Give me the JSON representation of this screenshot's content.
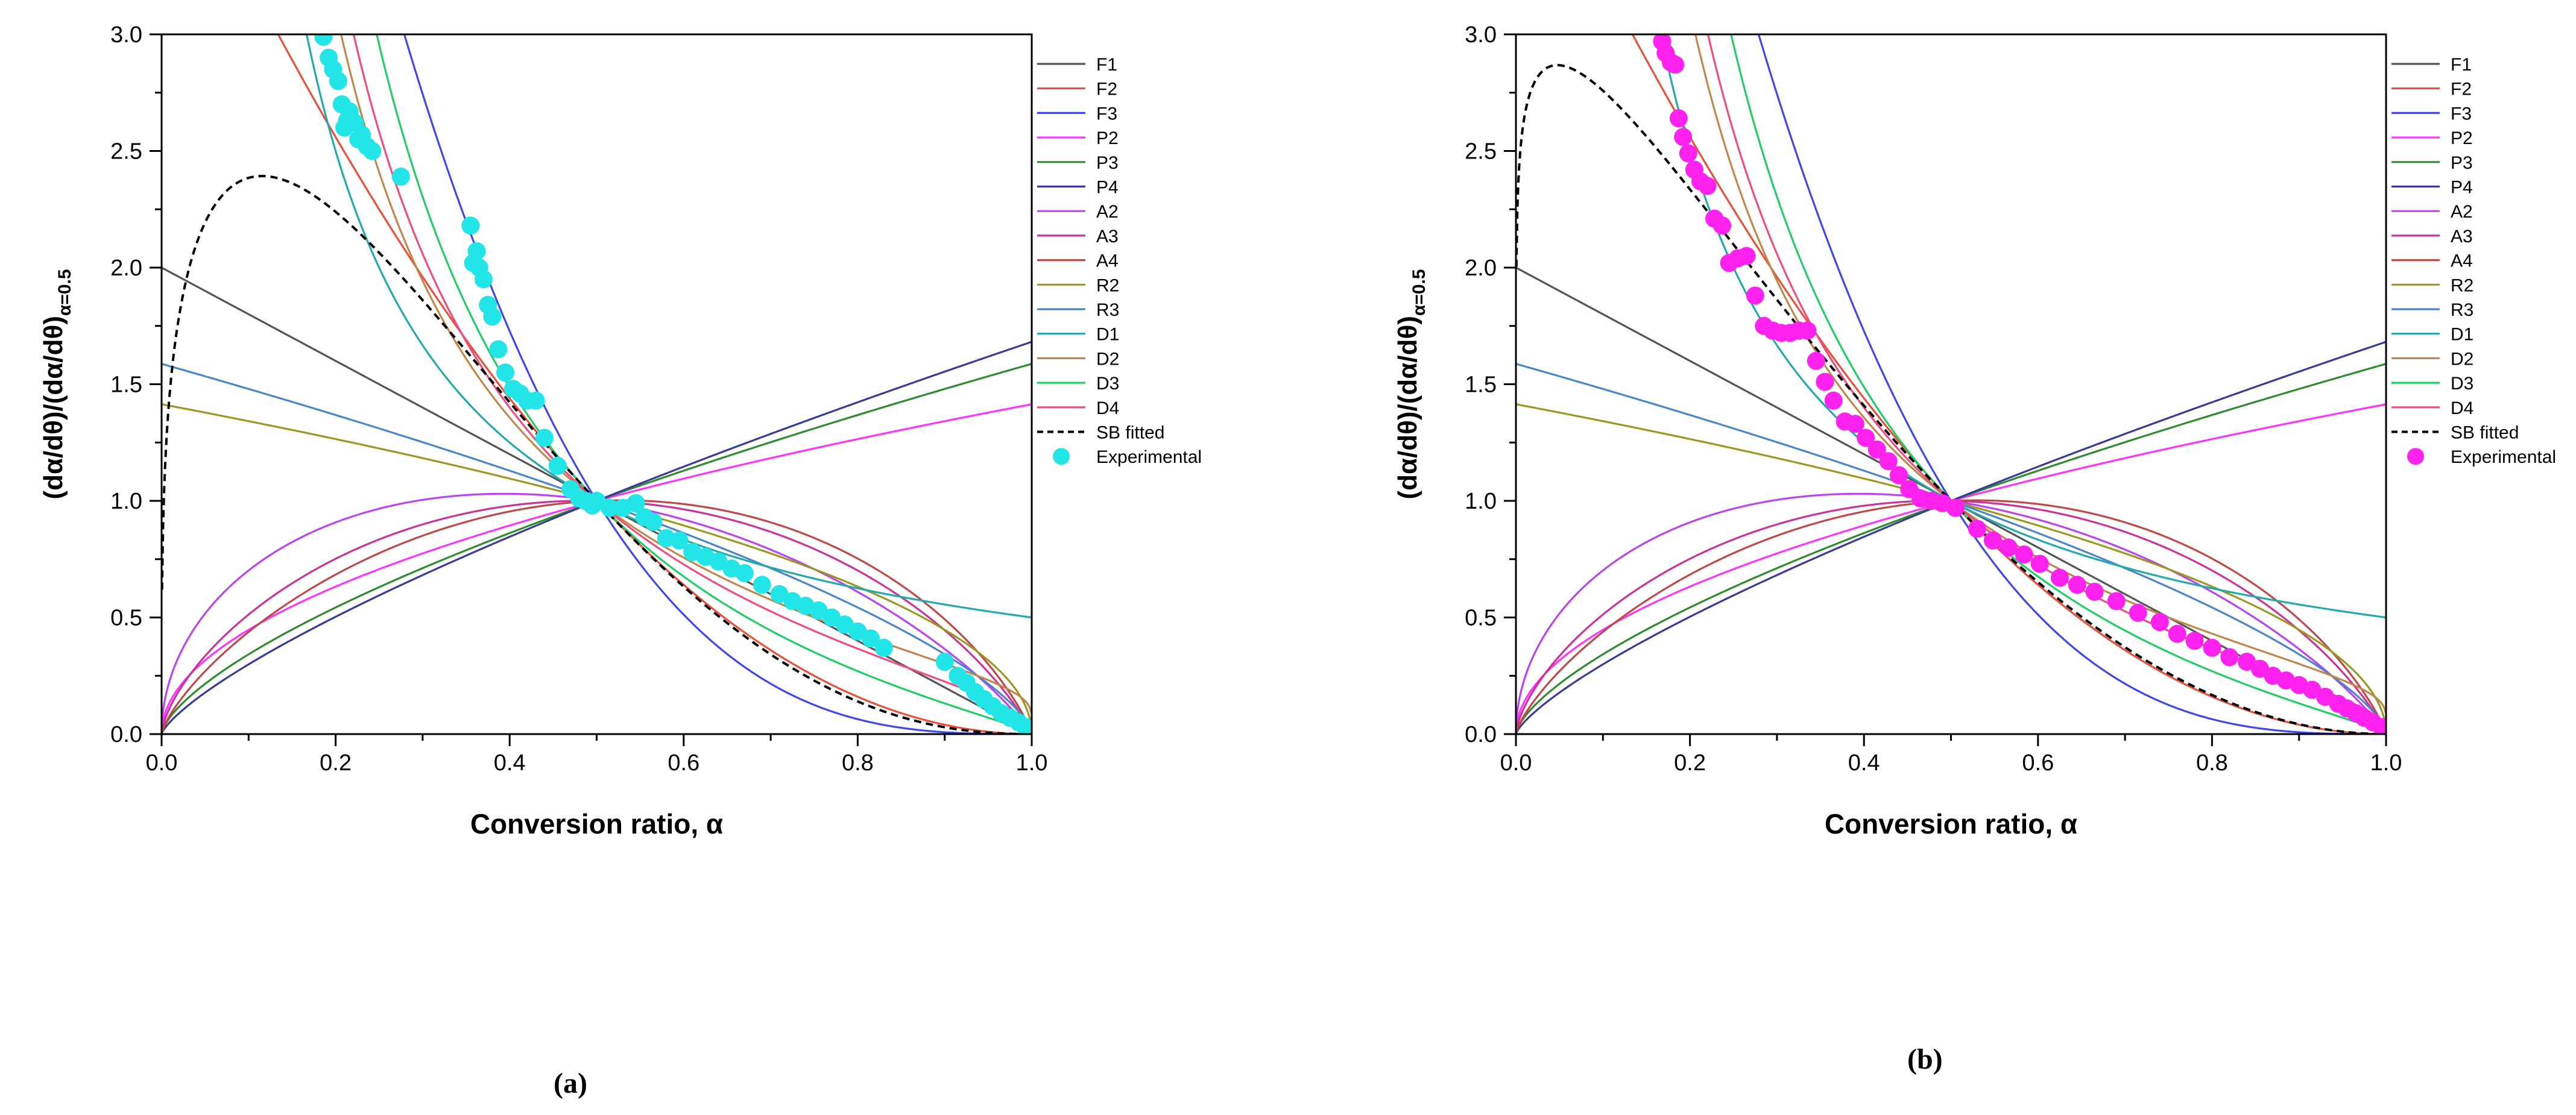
{
  "chart_data": [
    {
      "type": "line",
      "panel_label": "(a)",
      "xlabel": "Conversion ratio, α",
      "ylabel_main": "(dα/dθ)/(dα/dθ)",
      "ylabel_subscript": "α=0.5",
      "xlim": [
        0.0,
        1.0
      ],
      "ylim": [
        0.0,
        3.0
      ],
      "xticks": [
        "0.0",
        "0.2",
        "0.4",
        "0.6",
        "0.8",
        "1.0"
      ],
      "yticks": [
        "0.0",
        "0.5",
        "1.0",
        "1.5",
        "2.0",
        "2.5",
        "3.0"
      ],
      "legend_position": "right",
      "models": [
        {
          "name": "F1",
          "color": "#555555"
        },
        {
          "name": "F2",
          "color": "#e8503a"
        },
        {
          "name": "F3",
          "color": "#3f47e8"
        },
        {
          "name": "P2",
          "color": "#ff33ff"
        },
        {
          "name": "P3",
          "color": "#2e8b2e"
        },
        {
          "name": "P4",
          "color": "#3a3a9a"
        },
        {
          "name": "A2",
          "color": "#bb44ee"
        },
        {
          "name": "A3",
          "color": "#cc3399"
        },
        {
          "name": "A4",
          "color": "#c04848"
        },
        {
          "name": "R2",
          "color": "#999922"
        },
        {
          "name": "R3",
          "color": "#4a86c8"
        },
        {
          "name": "D1",
          "color": "#22aaaa"
        },
        {
          "name": "D2",
          "color": "#c0874a"
        },
        {
          "name": "D3",
          "color": "#22cc66"
        },
        {
          "name": "D4",
          "color": "#ee4d80"
        }
      ],
      "fitted": {
        "name": "SB fitted",
        "color": "#000000",
        "m": 0.3,
        "n": 2.3
      },
      "experimental": {
        "name": "Experimental",
        "color": "#22e5e8",
        "alpha": [
          0.186,
          0.192,
          0.197,
          0.203,
          0.207,
          0.21,
          0.213,
          0.216,
          0.219,
          0.222,
          0.226,
          0.23,
          0.236,
          0.242,
          0.275,
          0.355,
          0.358,
          0.362,
          0.365,
          0.37,
          0.375,
          0.38,
          0.387,
          0.395,
          0.404,
          0.412,
          0.42,
          0.43,
          0.44,
          0.455,
          0.47,
          0.48,
          0.487,
          0.495,
          0.5,
          0.515,
          0.53,
          0.545,
          0.555,
          0.565,
          0.58,
          0.595,
          0.61,
          0.625,
          0.64,
          0.655,
          0.67,
          0.69,
          0.71,
          0.725,
          0.74,
          0.755,
          0.77,
          0.785,
          0.8,
          0.815,
          0.83,
          0.9,
          0.915,
          0.925,
          0.935,
          0.945,
          0.955,
          0.965,
          0.975,
          0.985,
          0.993
        ],
        "value": [
          2.99,
          2.9,
          2.85,
          2.8,
          2.7,
          2.6,
          2.63,
          2.67,
          2.63,
          2.62,
          2.55,
          2.57,
          2.52,
          2.5,
          2.39,
          2.18,
          2.02,
          2.07,
          2.0,
          1.95,
          1.84,
          1.79,
          1.65,
          1.55,
          1.48,
          1.46,
          1.43,
          1.43,
          1.27,
          1.15,
          1.05,
          1.01,
          1.0,
          0.98,
          1.0,
          0.97,
          0.97,
          0.99,
          0.93,
          0.91,
          0.84,
          0.83,
          0.78,
          0.76,
          0.74,
          0.71,
          0.69,
          0.64,
          0.6,
          0.57,
          0.55,
          0.53,
          0.5,
          0.47,
          0.44,
          0.41,
          0.37,
          0.31,
          0.25,
          0.22,
          0.18,
          0.15,
          0.12,
          0.09,
          0.07,
          0.05,
          0.03
        ]
      }
    },
    {
      "type": "line",
      "panel_label": "(b)",
      "xlabel": "Conversion ratio, α",
      "ylabel_main": "(dα/dθ)/(dα/dθ)",
      "ylabel_subscript": "α=0.5",
      "xlim": [
        0.0,
        1.0
      ],
      "ylim": [
        0.0,
        3.0
      ],
      "xticks": [
        "0.0",
        "0.2",
        "0.4",
        "0.6",
        "0.8",
        "1.0"
      ],
      "yticks": [
        "0.0",
        "0.5",
        "1.0",
        "1.5",
        "2.0",
        "2.5",
        "3.0"
      ],
      "legend_position": "right",
      "models": [
        {
          "name": "F1",
          "color": "#555555"
        },
        {
          "name": "F2",
          "color": "#e8503a"
        },
        {
          "name": "F3",
          "color": "#3f47e8"
        },
        {
          "name": "P2",
          "color": "#ff33ff"
        },
        {
          "name": "P3",
          "color": "#2e8b2e"
        },
        {
          "name": "P4",
          "color": "#3a3a9a"
        },
        {
          "name": "A2",
          "color": "#bb44ee"
        },
        {
          "name": "A3",
          "color": "#cc3399"
        },
        {
          "name": "A4",
          "color": "#c04848"
        },
        {
          "name": "R2",
          "color": "#999922"
        },
        {
          "name": "R3",
          "color": "#4a86c8"
        },
        {
          "name": "D1",
          "color": "#22aaaa"
        },
        {
          "name": "D2",
          "color": "#c0874a"
        },
        {
          "name": "D3",
          "color": "#22cc66"
        },
        {
          "name": "D4",
          "color": "#ee4d80"
        }
      ],
      "fitted": {
        "name": "SB fitted",
        "color": "#000000",
        "m": 0.1,
        "n": 2.0
      },
      "experimental": {
        "name": "Experimental",
        "color": "#ff22ee",
        "alpha": [
          0.168,
          0.172,
          0.178,
          0.183,
          0.187,
          0.192,
          0.198,
          0.205,
          0.212,
          0.22,
          0.228,
          0.237,
          0.245,
          0.255,
          0.265,
          0.275,
          0.285,
          0.295,
          0.305,
          0.315,
          0.325,
          0.335,
          0.345,
          0.355,
          0.365,
          0.378,
          0.39,
          0.402,
          0.415,
          0.428,
          0.44,
          0.452,
          0.465,
          0.478,
          0.49,
          0.505,
          0.53,
          0.548,
          0.566,
          0.584,
          0.602,
          0.625,
          0.645,
          0.665,
          0.69,
          0.715,
          0.74,
          0.76,
          0.78,
          0.8,
          0.82,
          0.84,
          0.855,
          0.87,
          0.885,
          0.9,
          0.915,
          0.93,
          0.945,
          0.955,
          0.965,
          0.975,
          0.985,
          0.995
        ],
        "value": [
          2.97,
          2.92,
          2.88,
          2.87,
          2.64,
          2.56,
          2.49,
          2.42,
          2.37,
          2.35,
          2.21,
          2.18,
          2.02,
          2.04,
          2.05,
          1.88,
          1.75,
          1.73,
          1.72,
          1.72,
          1.73,
          1.73,
          1.6,
          1.51,
          1.43,
          1.34,
          1.33,
          1.27,
          1.22,
          1.17,
          1.11,
          1.05,
          1.01,
          1.0,
          0.99,
          0.97,
          0.88,
          0.83,
          0.8,
          0.77,
          0.73,
          0.67,
          0.64,
          0.61,
          0.57,
          0.52,
          0.48,
          0.43,
          0.4,
          0.37,
          0.33,
          0.31,
          0.28,
          0.25,
          0.23,
          0.21,
          0.19,
          0.16,
          0.13,
          0.11,
          0.09,
          0.07,
          0.05,
          0.03
        ]
      }
    }
  ]
}
